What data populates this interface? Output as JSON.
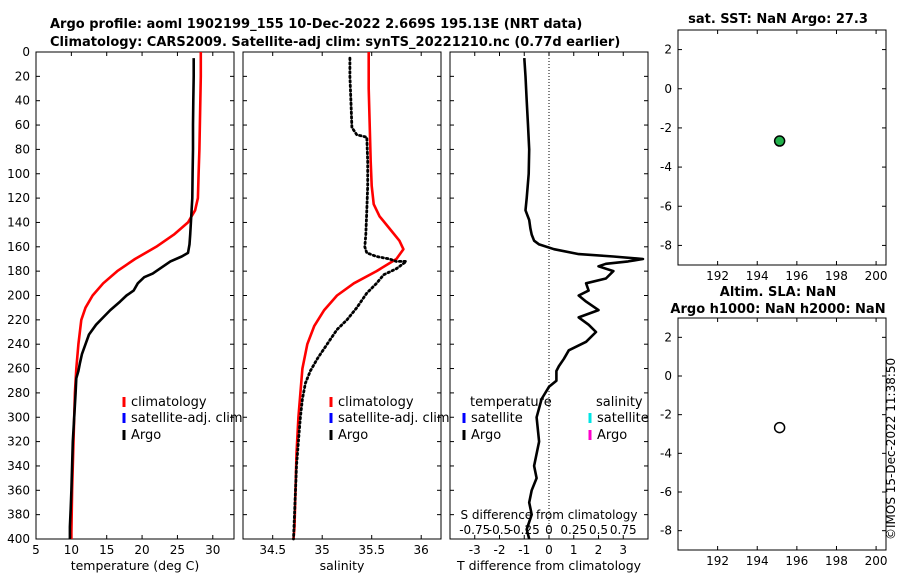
{
  "header": {
    "line1": "Argo profile: aoml 1902199_155 10-Dec-2022 2.669S 195.13E (NRT data)",
    "line2": "Climatology: CARS2009. Satellite-adj clim: synTS_20221210.nc (0.77d earlier)"
  },
  "stamp": "©IMOS 15-Dec-2022 11:38:50",
  "colors": {
    "climatology": "#ff0000",
    "satellite": "#0000ff",
    "argo": "#000000",
    "sal_satellite": "#00e5e5",
    "sal_argo": "#ff00cc",
    "marker_fill": "#22b14c"
  },
  "chart_data": [
    {
      "type": "line",
      "name": "temperature-profile",
      "xlabel": "temperature (deg C)",
      "ylabel": "",
      "xlim": [
        5,
        33
      ],
      "ylim": [
        0,
        400
      ],
      "y_reversed": true,
      "xticks": [
        5,
        10,
        15,
        20,
        25,
        30
      ],
      "yticks": [
        0,
        20,
        40,
        60,
        80,
        100,
        120,
        140,
        160,
        180,
        200,
        220,
        240,
        260,
        280,
        300,
        320,
        340,
        360,
        380,
        400
      ],
      "legend": [
        "climatology",
        "satellite-adj. clim",
        "Argo"
      ],
      "series": [
        {
          "name": "climatology",
          "style": "solid",
          "x": [
            28.3,
            28.3,
            28.2,
            28.1,
            28.0,
            27.9,
            27.5,
            26.5,
            24.5,
            22.0,
            19.0,
            16.5,
            14.5,
            13.0,
            12.0,
            11.4,
            11.0,
            10.7,
            10.5,
            10.4,
            10.3,
            10.2,
            10.1,
            10.05,
            10.0,
            10.0
          ],
          "y": [
            0,
            20,
            50,
            80,
            100,
            120,
            130,
            140,
            150,
            160,
            170,
            180,
            190,
            200,
            210,
            220,
            240,
            260,
            280,
            300,
            320,
            340,
            360,
            380,
            395,
            400
          ]
        },
        {
          "name": "Argo",
          "style": "solid",
          "x": [
            27.3,
            27.3,
            27.25,
            27.2,
            27.2,
            27.15,
            27.1,
            26.9,
            26.8,
            26.7,
            26.5,
            25.6,
            24.0,
            22.5,
            21.5,
            20.3,
            19.4,
            18.8,
            17.8,
            16.9,
            15.5,
            14.5,
            13.5,
            12.5,
            12.0,
            11.5,
            11.2,
            11.0,
            10.7,
            10.6,
            10.5,
            10.4,
            10.2,
            10.1,
            10.0,
            9.9,
            9.8,
            9.8
          ],
          "y": [
            5,
            20,
            40,
            60,
            80,
            100,
            120,
            140,
            150,
            158,
            165,
            168,
            172,
            178,
            182,
            185,
            190,
            196,
            200,
            205,
            212,
            218,
            224,
            232,
            240,
            248,
            256,
            262,
            268,
            280,
            290,
            300,
            320,
            340,
            360,
            375,
            390,
            400
          ]
        }
      ]
    },
    {
      "type": "line",
      "name": "salinity-profile",
      "xlabel": "salinity",
      "xlim": [
        34.2,
        36.2
      ],
      "ylim": [
        0,
        400
      ],
      "y_reversed": true,
      "xticks": [
        34.5,
        35,
        35.5,
        36
      ],
      "xticklabels": [
        "34.5",
        "35",
        "35.5",
        "36"
      ],
      "legend": [
        "climatology",
        "satellite-adj. clim",
        "Argo"
      ],
      "series": [
        {
          "name": "climatology",
          "style": "solid",
          "x": [
            35.47,
            35.47,
            35.48,
            35.49,
            35.5,
            35.52,
            35.58,
            35.68,
            35.78,
            35.82,
            35.75,
            35.55,
            35.32,
            35.15,
            35.02,
            34.92,
            34.85,
            34.8,
            34.78,
            34.76,
            34.74,
            34.73,
            34.72,
            34.71
          ],
          "y": [
            0,
            30,
            60,
            90,
            110,
            125,
            135,
            145,
            155,
            162,
            170,
            180,
            190,
            200,
            212,
            225,
            240,
            260,
            280,
            300,
            330,
            360,
            390,
            400
          ]
        },
        {
          "name": "Argo",
          "style": "dotted",
          "x": [
            35.28,
            35.28,
            35.29,
            35.3,
            35.35,
            35.45,
            35.46,
            35.46,
            35.45,
            35.44,
            35.43,
            35.45,
            35.55,
            35.68,
            35.75,
            35.85,
            35.75,
            35.62,
            35.55,
            35.45,
            35.35,
            35.25,
            35.15,
            35.05,
            34.95,
            34.88,
            34.83,
            34.8,
            34.78,
            34.76,
            34.74,
            34.73,
            34.72,
            34.71
          ],
          "y": [
            5,
            20,
            40,
            62,
            68,
            70,
            90,
            110,
            130,
            150,
            160,
            165,
            168,
            170,
            172,
            172,
            178,
            183,
            190,
            198,
            210,
            220,
            228,
            240,
            252,
            262,
            272,
            285,
            300,
            320,
            340,
            360,
            380,
            400
          ]
        }
      ]
    },
    {
      "type": "line",
      "name": "difference-profile",
      "xlabel": "T difference from climatology",
      "top_label": "S difference from climatology",
      "xlim": [
        -4,
        4
      ],
      "ylim": [
        0,
        400
      ],
      "y_reversed": true,
      "xticks": [
        -3,
        -2,
        -1,
        0,
        1,
        2,
        3
      ],
      "top_ticks": [
        "-0.75",
        "-0.5",
        "-0.25",
        "0",
        "0.25",
        "0.5",
        "0.75"
      ],
      "legend": {
        "temperature": [
          "satellite",
          "Argo"
        ],
        "salinity": [
          "satellite",
          "Argo"
        ]
      },
      "legend_titles": [
        "temperature",
        "salinity"
      ],
      "series": [
        {
          "name": "T difference Argo",
          "style": "solid",
          "x": [
            -1.0,
            -0.95,
            -0.9,
            -0.85,
            -0.8,
            -0.82,
            -0.9,
            -0.95,
            -0.8,
            -0.75,
            -0.7,
            -0.6,
            -0.4,
            0.2,
            1.2,
            2.6,
            3.8,
            3.2,
            2.3,
            2.0,
            2.6,
            2.3,
            1.5,
            1.6,
            1.2,
            1.5,
            2.0,
            1.2,
            1.6,
            1.9,
            1.5,
            0.8,
            0.6,
            0.4,
            0.3,
            0.3,
            0.0,
            -0.3,
            -0.5,
            -0.4,
            -0.6,
            -0.5,
            -0.7,
            -0.8,
            -0.7,
            -0.9,
            -0.8
          ],
          "y": [
            5,
            20,
            40,
            60,
            80,
            100,
            120,
            130,
            138,
            145,
            150,
            155,
            158,
            162,
            166,
            168,
            170,
            172,
            174,
            176,
            180,
            186,
            190,
            196,
            200,
            205,
            212,
            218,
            224,
            230,
            238,
            245,
            252,
            258,
            262,
            270,
            275,
            285,
            300,
            320,
            340,
            350,
            360,
            370,
            380,
            392,
            400
          ]
        }
      ]
    },
    {
      "type": "scatter",
      "name": "sst-panel",
      "title": "sat. SST: NaN Argo: 27.3",
      "xlim": [
        190,
        200.5
      ],
      "ylim": [
        -9,
        3
      ],
      "xticks": [
        192,
        194,
        196,
        198,
        200
      ],
      "yticks": [
        2,
        0,
        -2,
        -4,
        -6,
        -8
      ],
      "points": [
        {
          "x": 195.13,
          "y": -2.669,
          "filled": true
        }
      ]
    },
    {
      "type": "scatter",
      "name": "sla-panel",
      "title_lines": [
        "Altim. SLA: NaN",
        "Argo h1000: NaN h2000: NaN"
      ],
      "xlim": [
        190,
        200.5
      ],
      "ylim": [
        -9,
        3
      ],
      "xticks": [
        192,
        194,
        196,
        198,
        200
      ],
      "yticks": [
        2,
        0,
        -2,
        -4,
        -6,
        -8
      ],
      "points": [
        {
          "x": 195.13,
          "y": -2.669,
          "filled": false
        }
      ]
    }
  ]
}
